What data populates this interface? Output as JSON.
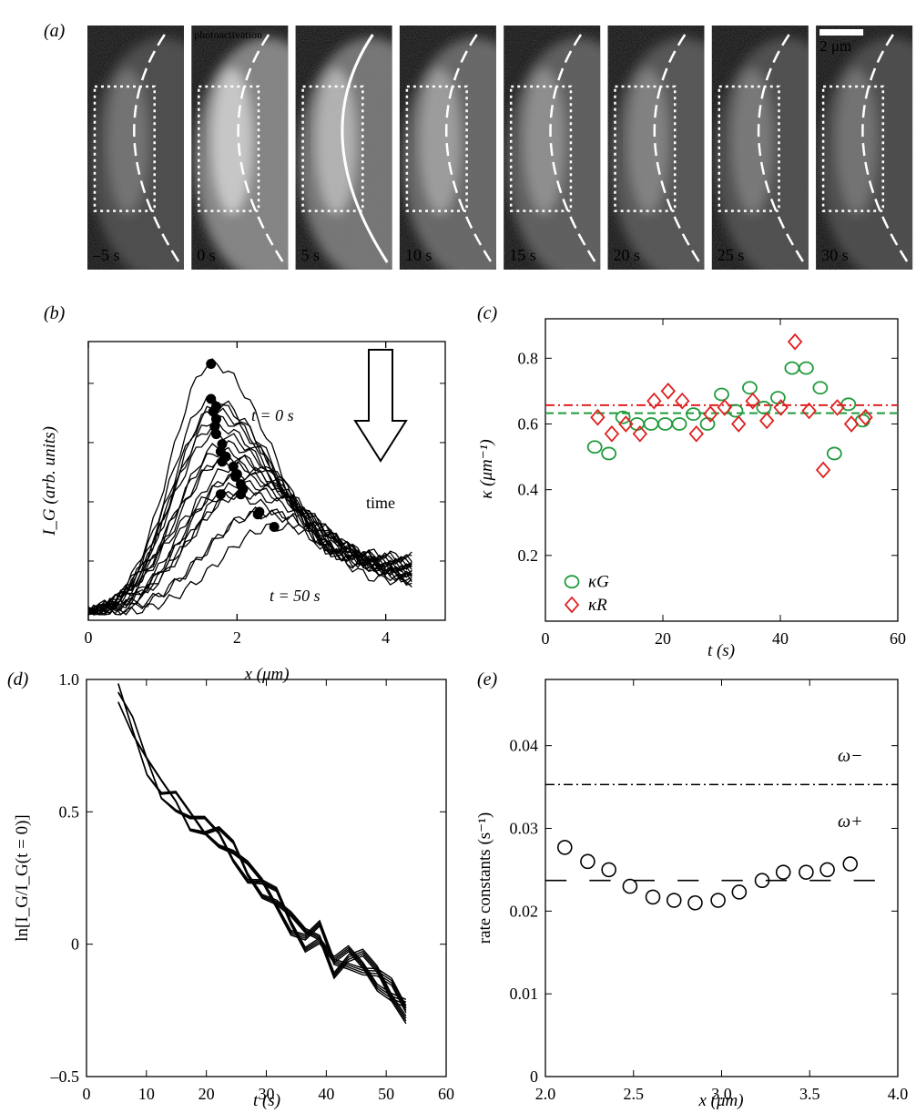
{
  "panels": {
    "a": {
      "label": "(a)",
      "annotation": "photoactivation",
      "scalebar_label": "2 μm",
      "frames": [
        "–5 s",
        "0 s",
        "5 s",
        "10 s",
        "15 s",
        "20 s",
        "25 s",
        "30 s"
      ],
      "frame_brightness": [
        0.55,
        0.95,
        0.85,
        0.75,
        0.68,
        0.62,
        0.58,
        0.55
      ]
    },
    "b": {
      "label": "(b)"
    },
    "c": {
      "label": "(c)"
    },
    "d": {
      "label": "(d)"
    },
    "e": {
      "label": "(e)"
    }
  },
  "chart_data": [
    {
      "panel": "b",
      "type": "line",
      "xlabel": "x (μm)",
      "ylabel": "I_G (arb. units)",
      "xlim": [
        0,
        4.8
      ],
      "xticks": [
        0,
        2,
        4
      ],
      "annotations": [
        "t = 0 s",
        "t = 50 s",
        "time"
      ],
      "curve_count": 21,
      "peaks": [
        {
          "x": 1.65,
          "y": 1.0
        },
        {
          "x": 1.65,
          "y": 0.86
        },
        {
          "x": 1.72,
          "y": 0.83
        },
        {
          "x": 1.68,
          "y": 0.81
        },
        {
          "x": 1.72,
          "y": 0.78
        },
        {
          "x": 1.7,
          "y": 0.75
        },
        {
          "x": 1.72,
          "y": 0.72
        },
        {
          "x": 1.8,
          "y": 0.68
        },
        {
          "x": 1.78,
          "y": 0.65
        },
        {
          "x": 1.85,
          "y": 0.63
        },
        {
          "x": 1.8,
          "y": 0.61
        },
        {
          "x": 1.95,
          "y": 0.59
        },
        {
          "x": 2.0,
          "y": 0.56
        },
        {
          "x": 1.98,
          "y": 0.55
        },
        {
          "x": 2.05,
          "y": 0.52
        },
        {
          "x": 2.08,
          "y": 0.5
        },
        {
          "x": 1.78,
          "y": 0.48
        },
        {
          "x": 2.05,
          "y": 0.48
        },
        {
          "x": 2.3,
          "y": 0.41
        },
        {
          "x": 2.28,
          "y": 0.4
        },
        {
          "x": 2.5,
          "y": 0.35
        }
      ]
    },
    {
      "panel": "c",
      "type": "scatter",
      "xlabel": "t (s)",
      "ylabel": "κ (μm⁻¹)",
      "xlim": [
        0,
        60
      ],
      "ylim": [
        0,
        0.92
      ],
      "xticks": [
        0,
        20,
        40,
        60
      ],
      "yticks": [
        0.2,
        0.4,
        0.6,
        0.8
      ],
      "hlines": [
        {
          "y": 0.633,
          "color": "#1f9b3c",
          "style": "dashed"
        },
        {
          "y": 0.657,
          "color": "#e02020",
          "style": "dashdot"
        }
      ],
      "series": [
        {
          "name": "κG",
          "marker": "circle",
          "color": "#1f9b3c",
          "x": [
            8.4,
            10.8,
            13.2,
            15.6,
            18.0,
            20.4,
            22.8,
            25.2,
            27.6,
            30.0,
            32.4,
            34.8,
            37.2,
            39.6,
            42.0,
            44.4,
            46.8,
            49.2,
            51.6,
            54.0
          ],
          "y": [
            0.53,
            0.51,
            0.62,
            0.6,
            0.6,
            0.6,
            0.6,
            0.63,
            0.6,
            0.69,
            0.64,
            0.71,
            0.65,
            0.68,
            0.77,
            0.77,
            0.71,
            0.51,
            0.66,
            0.61
          ]
        },
        {
          "name": "κR",
          "marker": "diamond",
          "color": "#e02020",
          "x": [
            8.9,
            11.3,
            13.7,
            16.1,
            18.5,
            20.9,
            23.3,
            25.7,
            28.1,
            30.5,
            32.9,
            35.3,
            37.7,
            40.1,
            42.5,
            44.9,
            47.3,
            49.7,
            52.1,
            54.5
          ],
          "y": [
            0.62,
            0.57,
            0.6,
            0.57,
            0.67,
            0.7,
            0.67,
            0.57,
            0.63,
            0.65,
            0.6,
            0.67,
            0.61,
            0.65,
            0.85,
            0.64,
            0.46,
            0.65,
            0.6,
            0.62
          ]
        }
      ]
    },
    {
      "panel": "d",
      "type": "line",
      "xlabel": "t (s)",
      "ylabel": "ln[I_G/I_G(t = 0)]",
      "xlim": [
        0,
        60
      ],
      "ylim": [
        -0.5,
        1.0
      ],
      "xticks": [
        0,
        10,
        20,
        30,
        40,
        50,
        60
      ],
      "yticks": [
        -0.5,
        0,
        0.5,
        1.0
      ],
      "ytick_labels": [
        "–0.5",
        "0",
        "0.5",
        "1.0"
      ],
      "x": [
        5.3,
        7.7,
        10.1,
        12.5,
        14.9,
        17.3,
        19.7,
        22.1,
        24.5,
        26.9,
        29.3,
        31.7,
        34.1,
        36.5,
        38.9,
        41.3,
        43.7,
        46.1,
        48.5,
        50.9,
        53.3
      ],
      "mean": [
        0.95,
        0.82,
        0.68,
        0.58,
        0.54,
        0.47,
        0.44,
        0.41,
        0.35,
        0.27,
        0.22,
        0.17,
        0.08,
        0.02,
        0.04,
        -0.08,
        -0.05,
        -0.07,
        -0.12,
        -0.18,
        -0.25
      ],
      "curve_count": 12
    },
    {
      "panel": "e",
      "type": "scatter",
      "xlabel": "x (μm)",
      "ylabel": "rate constants (s⁻¹)",
      "xlim": [
        2.0,
        4.0
      ],
      "ylim": [
        0,
        0.048
      ],
      "xticks": [
        2.0,
        2.5,
        3.0,
        3.5,
        4.0
      ],
      "yticks": [
        0,
        0.01,
        0.02,
        0.03,
        0.04
      ],
      "annotations": [
        "ω−",
        "ω+"
      ],
      "hline": {
        "y": 0.0353,
        "label": "ω−",
        "style": "dashdot"
      },
      "segments": {
        "y": 0.0237,
        "label": "ω+",
        "x_ranges": [
          [
            2.0,
            2.12
          ],
          [
            2.25,
            2.37
          ],
          [
            2.5,
            2.62
          ],
          [
            2.75,
            2.87
          ],
          [
            3.0,
            3.12
          ],
          [
            3.25,
            3.37
          ],
          [
            3.5,
            3.62
          ],
          [
            3.75,
            3.87
          ]
        ]
      },
      "series": [
        {
          "name": "",
          "marker": "circle",
          "x": [
            2.11,
            2.24,
            2.36,
            2.48,
            2.61,
            2.73,
            2.85,
            2.98,
            3.1,
            3.23,
            3.35,
            3.48,
            3.6,
            3.73
          ],
          "y": [
            0.0277,
            0.026,
            0.025,
            0.023,
            0.0217,
            0.0213,
            0.021,
            0.0213,
            0.0223,
            0.0237,
            0.0247,
            0.0247,
            0.025,
            0.0257
          ]
        }
      ]
    }
  ]
}
